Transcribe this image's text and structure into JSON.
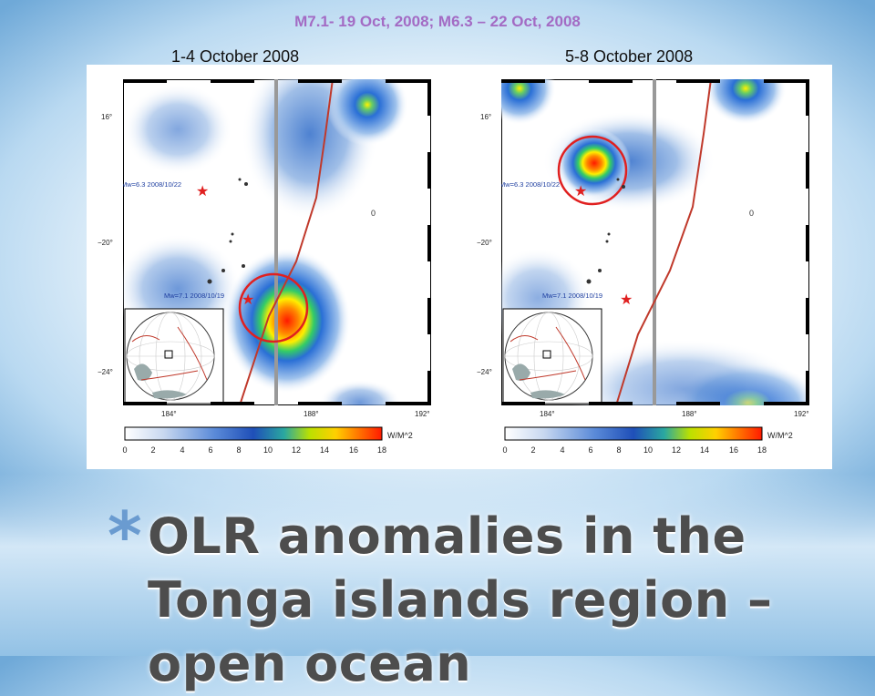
{
  "slide": {
    "event_title": "M7.1- 19 Oct, 2008; M6.3 – 22 Oct, 2008",
    "left_period": "1-4 October 2008",
    "right_period": "5-8 October 2008",
    "title": "OLR anomalies in the Tonga islands region – open ocean",
    "bullet": "*"
  },
  "maps": {
    "lat_ticks": [
      "16°",
      "−20°",
      "−24°"
    ],
    "lon_ticks": [
      "184°",
      "188°",
      "192°"
    ],
    "quake_labels": [
      "Mw=6.3 2008/10/22",
      "Mw=7.1 2008/10/19"
    ],
    "contour_label": "0",
    "colorbar_unit": "W/M^2",
    "colorbar_ticks": [
      "0",
      "2",
      "4",
      "6",
      "8",
      "10",
      "12",
      "14",
      "16",
      "18"
    ]
  },
  "colors": {
    "title_purple": "#a36bc4",
    "marker_red": "#e02020",
    "plate_boundary": "#c0392b",
    "meridian_gray": "#999999"
  }
}
